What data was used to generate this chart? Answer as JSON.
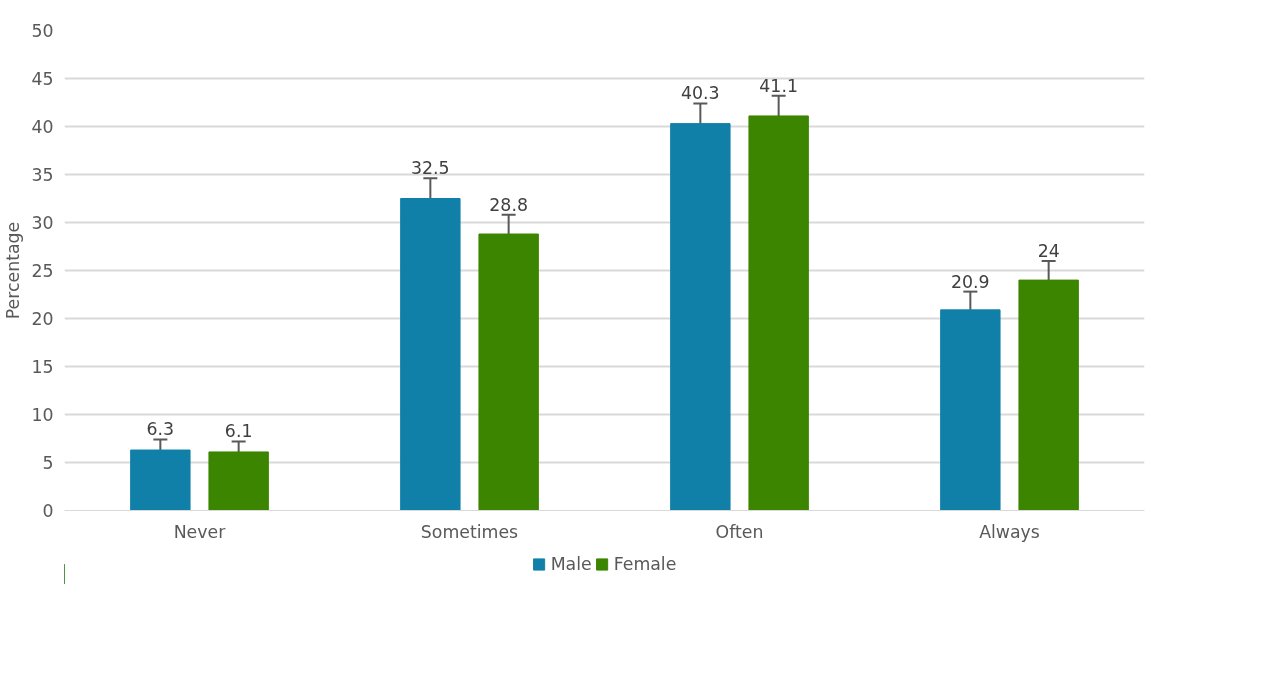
{
  "chart_data": {
    "type": "bar",
    "ylabel": "Percentage",
    "categories": [
      "Never",
      "Sometimes",
      "Often",
      "Always"
    ],
    "series": [
      {
        "name": "Male",
        "color": "#1180a8",
        "values": [
          6.3,
          32.5,
          40.3,
          20.9
        ],
        "errors": [
          1.1,
          2.1,
          2.1,
          1.9
        ]
      },
      {
        "name": "Female",
        "color": "#3b8500",
        "values": [
          6.1,
          28.8,
          41.1,
          24
        ],
        "errors": [
          1.1,
          2,
          2.1,
          2
        ]
      }
    ],
    "ylim": [
      0,
      50
    ],
    "yticks": [
      0,
      5,
      10,
      15,
      20,
      25,
      30,
      35,
      40,
      45,
      50
    ],
    "grid": "y",
    "legend": "bottom",
    "data_labels": true
  }
}
